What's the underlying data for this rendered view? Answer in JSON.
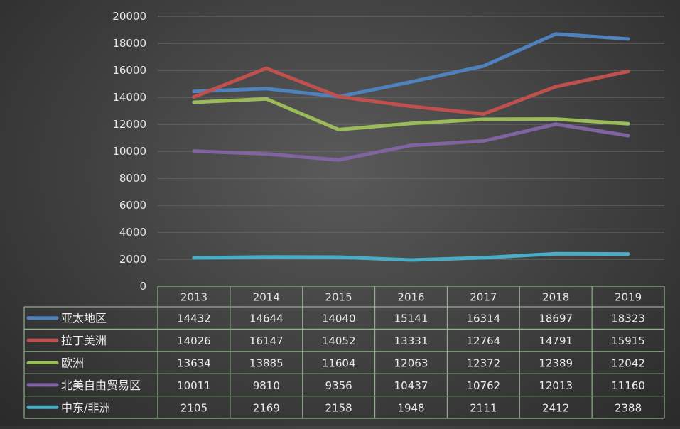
{
  "chart_data": {
    "type": "line",
    "title": "",
    "xlabel": "",
    "ylabel": "",
    "ylim": [
      0,
      20000
    ],
    "yticks": [
      "0",
      "2000",
      "4000",
      "6000",
      "8000",
      "10000",
      "12000",
      "14000",
      "16000",
      "18000",
      "20000"
    ],
    "categories": [
      "2013",
      "2014",
      "2015",
      "2016",
      "2017",
      "2018",
      "2019"
    ],
    "grid": true,
    "legend": "data-table",
    "series": [
      {
        "name": "亚太地区",
        "color": "#4f81bd",
        "values": [
          14432,
          14644,
          14040,
          15141,
          16314,
          18697,
          18323
        ]
      },
      {
        "name": "拉丁美洲",
        "color": "#c0504d",
        "values": [
          14026,
          16147,
          14052,
          13331,
          12764,
          14791,
          15915
        ]
      },
      {
        "name": "欧洲",
        "color": "#9bbb59",
        "values": [
          13634,
          13885,
          11604,
          12063,
          12372,
          12389,
          12042
        ]
      },
      {
        "name": "北美自由贸易区",
        "color": "#8064a2",
        "values": [
          10011,
          9810,
          9356,
          10437,
          10762,
          12013,
          11160
        ]
      },
      {
        "name": "中东/非洲",
        "color": "#4bacc6",
        "values": [
          2105,
          2169,
          2158,
          1948,
          2111,
          2412,
          2388
        ]
      }
    ]
  }
}
